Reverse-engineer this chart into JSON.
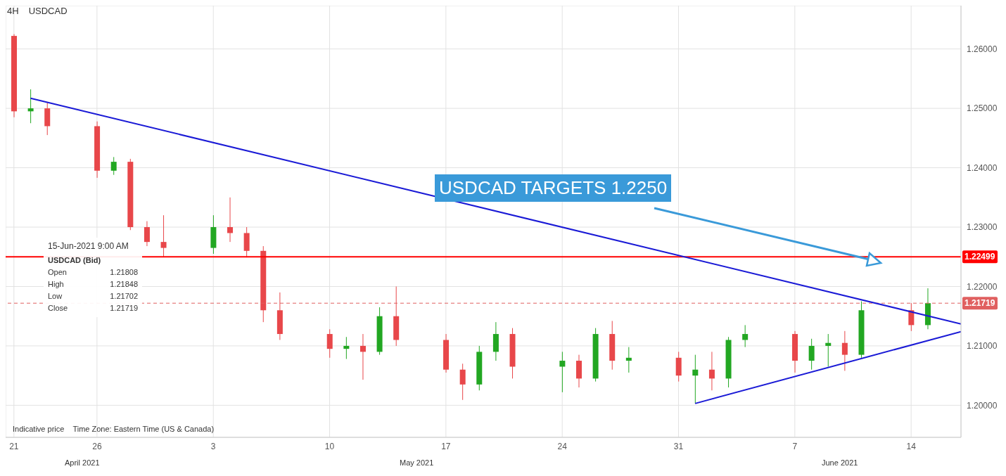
{
  "chart_data": {
    "type": "candlestick",
    "title": "USDCAD",
    "subtitle": "4H",
    "x": [
      "2021-04-21",
      "2021-04-22",
      "2021-04-23",
      "2021-04-26",
      "2021-04-27",
      "2021-04-28",
      "2021-04-29",
      "2021-04-30",
      "2021-05-03",
      "2021-05-04",
      "2021-05-05",
      "2021-05-06",
      "2021-05-07",
      "2021-05-10",
      "2021-05-11",
      "2021-05-12",
      "2021-05-13",
      "2021-05-14",
      "2021-05-17",
      "2021-05-18",
      "2021-05-19",
      "2021-05-20",
      "2021-05-21",
      "2021-05-24",
      "2021-05-25",
      "2021-05-26",
      "2021-05-27",
      "2021-05-28",
      "2021-05-31",
      "2021-06-01",
      "2021-06-02",
      "2021-06-03",
      "2021-06-04",
      "2021-06-07",
      "2021-06-08",
      "2021-06-09",
      "2021-06-10",
      "2021-06-11",
      "2021-06-14",
      "2021-06-15"
    ],
    "ohlc": [
      [
        1.2622,
        1.2625,
        1.2485,
        1.2495
      ],
      [
        1.2495,
        1.2532,
        1.2475,
        1.25
      ],
      [
        1.25,
        1.251,
        1.2455,
        1.247
      ],
      [
        1.247,
        1.2478,
        1.2383,
        1.2395
      ],
      [
        1.2395,
        1.2418,
        1.2388,
        1.241
      ],
      [
        1.241,
        1.2415,
        1.2295,
        1.23
      ],
      [
        1.23,
        1.231,
        1.2268,
        1.2275
      ],
      [
        1.2275,
        1.232,
        1.225,
        1.2265
      ],
      [
        1.2265,
        1.232,
        1.2255,
        1.23
      ],
      [
        1.23,
        1.235,
        1.2275,
        1.229
      ],
      [
        1.229,
        1.23,
        1.2249,
        1.226
      ],
      [
        1.226,
        1.2268,
        1.214,
        1.216
      ],
      [
        1.216,
        1.219,
        1.211,
        1.212
      ],
      [
        1.212,
        1.2128,
        1.208,
        1.2095
      ],
      [
        1.2095,
        1.2115,
        1.2078,
        1.21
      ],
      [
        1.21,
        1.212,
        1.2043,
        1.209
      ],
      [
        1.209,
        1.2165,
        1.2085,
        1.215
      ],
      [
        1.215,
        1.22,
        1.21,
        1.211
      ],
      [
        1.211,
        1.212,
        1.2055,
        1.206
      ],
      [
        1.206,
        1.207,
        1.2009,
        1.2035
      ],
      [
        1.2035,
        1.21,
        1.2025,
        1.209
      ],
      [
        1.209,
        1.214,
        1.2075,
        1.212
      ],
      [
        1.212,
        1.213,
        1.2045,
        1.2065
      ],
      [
        1.2065,
        1.209,
        1.2022,
        1.2075
      ],
      [
        1.2075,
        1.2085,
        1.203,
        1.2045
      ],
      [
        1.2045,
        1.213,
        1.204,
        1.212
      ],
      [
        1.212,
        1.2142,
        1.206,
        1.2075
      ],
      [
        1.2075,
        1.2098,
        1.2055,
        1.208
      ],
      [
        1.208,
        1.209,
        1.204,
        1.205
      ],
      [
        1.205,
        1.2085,
        1.2003,
        1.206
      ],
      [
        1.206,
        1.209,
        1.2025,
        1.2045
      ],
      [
        1.2045,
        1.2115,
        1.203,
        1.211
      ],
      [
        1.211,
        1.2135,
        1.2098,
        1.212
      ],
      [
        1.212,
        1.2125,
        1.2055,
        1.2075
      ],
      [
        1.2075,
        1.2112,
        1.206,
        1.21
      ],
      [
        1.21,
        1.212,
        1.2065,
        1.2105
      ],
      [
        1.2105,
        1.2125,
        1.2058,
        1.2085
      ],
      [
        1.2085,
        1.2175,
        1.208,
        1.216
      ],
      [
        1.216,
        1.2172,
        1.2125,
        1.2135
      ],
      [
        1.2135,
        1.2197,
        1.2128,
        1.21719
      ]
    ],
    "series": [
      {
        "type": "line",
        "color": "#1a1ad6",
        "x": [
          "2021-04-22",
          "2021-06-17"
        ],
        "values": [
          1.2517,
          1.2137
        ]
      },
      {
        "type": "line",
        "color": "#1a1ad6",
        "x": [
          "2021-06-01",
          "2021-06-17"
        ],
        "values": [
          1.2003,
          1.2124
        ]
      }
    ],
    "xlim": [
      "2021-04-20T12:00",
      "2021-06-17"
    ],
    "xticks": [
      {
        "value": "2021-04-21",
        "label": "21"
      },
      {
        "value": "2021-04-26",
        "label": "26"
      },
      {
        "value": "2021-05-03",
        "label": "3"
      },
      {
        "value": "2021-05-10",
        "label": "10"
      },
      {
        "value": "2021-05-17",
        "label": "17"
      },
      {
        "value": "2021-05-24",
        "label": "24"
      },
      {
        "value": "2021-05-31",
        "label": "31"
      },
      {
        "value": "2021-06-07",
        "label": "7"
      },
      {
        "value": "2021-06-14",
        "label": "14"
      }
    ],
    "ylim": [
      1.1946,
      1.2673
    ],
    "yticks": [
      {
        "value": 1.2,
        "label": "1.20000"
      },
      {
        "value": 1.21,
        "label": "1.21000"
      },
      {
        "value": 1.22,
        "label": "1.22000"
      },
      {
        "value": 1.23,
        "label": "1.23000"
      },
      {
        "value": 1.24,
        "label": "1.24000"
      },
      {
        "value": 1.25,
        "label": "1.25000"
      },
      {
        "value": 1.26,
        "label": "1.26000"
      }
    ],
    "grid": true,
    "ref_lines": [
      {
        "axis": "y",
        "value": 1.22499,
        "label": "1.22499",
        "color": "#ff0000",
        "line_style": "solid"
      },
      {
        "axis": "y",
        "value": 1.21719,
        "label": "1.21719",
        "color": "#e06060",
        "line_style": "dashed"
      }
    ],
    "annotations": [
      "USDCAD TARGETS 1.2250",
      "15-Jun-2021 9:00 AM",
      "USDCAD (Bid)",
      "Open",
      "1.21808",
      "High",
      "1.21848",
      "Low",
      "1.21702",
      "Close",
      "1.21719",
      "Indicative price",
      "Time Zone: Eastern Time (US & Canada)",
      "April 2021",
      "May 2021",
      "June 2021"
    ]
  }
}
